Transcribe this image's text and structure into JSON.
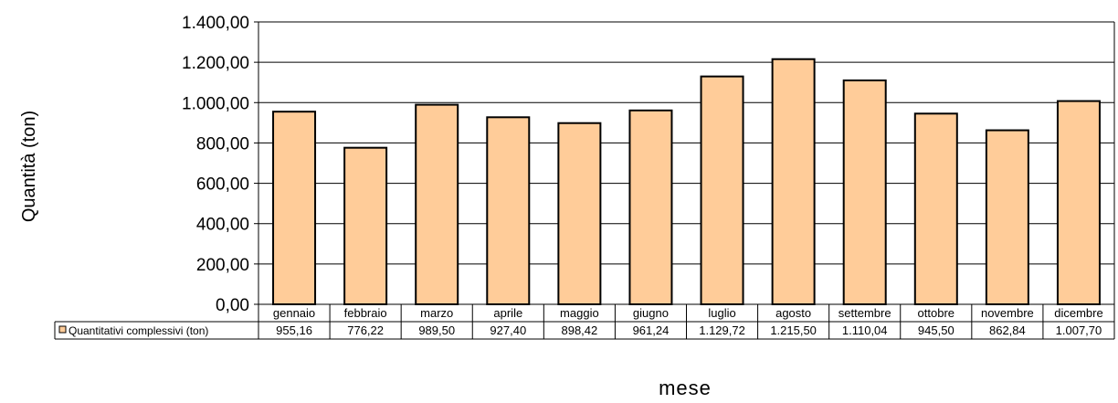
{
  "chart_data": {
    "type": "bar",
    "title": "",
    "xlabel": "mese",
    "ylabel": "Quantità (ton)",
    "ylim": [
      0,
      1400
    ],
    "y_ticks": [
      0,
      200,
      400,
      600,
      800,
      1000,
      1200,
      1400
    ],
    "y_tick_labels": [
      "0,00",
      "200,00",
      "400,00",
      "600,00",
      "800,00",
      "1.000,00",
      "1.200,00",
      "1.400,00"
    ],
    "grid": true,
    "legend": "data-table-left",
    "categories": [
      "gennaio",
      "febbraio",
      "marzo",
      "aprile",
      "maggio",
      "giugno",
      "luglio",
      "agosto",
      "settembre",
      "ottobre",
      "novembre",
      "dicembre"
    ],
    "series": [
      {
        "name": "Quantitativi complessivi (ton)",
        "color": "#FFCC99",
        "values": [
          955.16,
          776.22,
          989.5,
          927.4,
          898.42,
          961.24,
          1129.72,
          1215.5,
          1110.04,
          945.5,
          862.84,
          1007.7
        ],
        "value_labels": [
          "955,16",
          "776,22",
          "989,50",
          "927,40",
          "898,42",
          "961,24",
          "1.129,72",
          "1.215,50",
          "1.110,04",
          "945,50",
          "862,84",
          "1.007,70"
        ]
      }
    ]
  }
}
